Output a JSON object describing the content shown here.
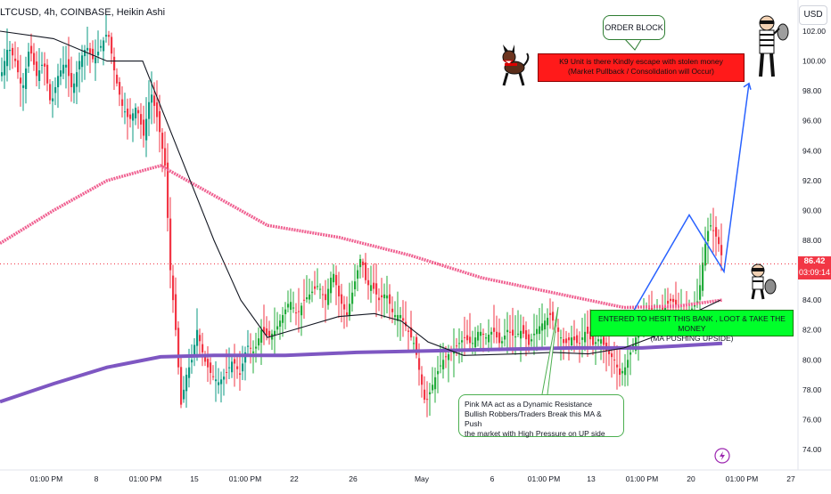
{
  "header": {
    "symbol": "LTCUSD",
    "interval": "4h",
    "exchange": "COINBASE",
    "chart_style": "Heikin Ashi",
    "separator": ", ",
    "currency_button": "USD"
  },
  "price_scale": {
    "last_price": "86.42",
    "countdown": "03:09:14",
    "last_price_color": "#f23645"
  },
  "annotations": {
    "order_block": "ORDER BLOCK",
    "k9_line1": "K9 Unit is there Kindly escape with stolen money",
    "k9_line2": "(Market Pullback / Consolidation will Occur)",
    "enter_line1": "ENTERED TO HESIT THIS BANK , LOOT & TAKE THE MONEY",
    "enter_line2": "(MA PUSHING UPSIDE)",
    "pink_line1": "Pink MA act as a Dynamic Resistance",
    "pink_line2": "Bullish Robbers/Traders Break this MA & Push",
    "pink_line3": "the market with High Pressure on UP side",
    "dog_icon": "guard-dog-icon",
    "robber_icon": "robber-with-money-bag-icon",
    "robber_small_icon": "small-robber-icon",
    "lightning_icon": "lightning-icon"
  },
  "colors": {
    "bull": "#089981",
    "bull_bright": "#22ab3a",
    "bear": "#f23645",
    "pink_ma": "#f06292",
    "purple_ma": "#7e57c2",
    "black_ma": "#131722",
    "projection": "#2962ff"
  },
  "chart_data": {
    "type": "candlestick",
    "title": "",
    "y_range": [
      73,
      103
    ],
    "y_ticks": [
      "74.00",
      "76.00",
      "78.00",
      "80.00",
      "82.00",
      "84.00",
      "86.00",
      "88.00",
      "90.00",
      "92.00",
      "94.00",
      "96.00",
      "98.00",
      "100.00",
      "102.00"
    ],
    "x_ticks": [
      "01:00 PM",
      "8",
      "01:00 PM",
      "15",
      "01:00 PM",
      "22",
      "26",
      "May",
      "6",
      "01:00 PM",
      "13",
      "01:00 PM",
      "20",
      "01:00 PM",
      "27"
    ],
    "last_price": 86.42,
    "close_path": [
      [
        0,
        99
      ],
      [
        8,
        101
      ],
      [
        16,
        100
      ],
      [
        24,
        98
      ],
      [
        32,
        101
      ],
      [
        40,
        99
      ],
      [
        48,
        100
      ],
      [
        56,
        97
      ],
      [
        64,
        99
      ],
      [
        72,
        100
      ],
      [
        80,
        98
      ],
      [
        88,
        100
      ],
      [
        96,
        101
      ],
      [
        104,
        100
      ],
      [
        112,
        101
      ],
      [
        120,
        102
      ],
      [
        128,
        99
      ],
      [
        136,
        97
      ],
      [
        144,
        96
      ],
      [
        152,
        97
      ],
      [
        160,
        95
      ],
      [
        168,
        98
      ],
      [
        176,
        96
      ],
      [
        184,
        93
      ],
      [
        190,
        86
      ],
      [
        196,
        82
      ],
      [
        202,
        77
      ],
      [
        208,
        79
      ],
      [
        214,
        80
      ],
      [
        220,
        82
      ],
      [
        228,
        80
      ],
      [
        236,
        79
      ],
      [
        244,
        78.5
      ],
      [
        252,
        79
      ],
      [
        260,
        80
      ],
      [
        268,
        79
      ],
      [
        276,
        81
      ],
      [
        284,
        80.5
      ],
      [
        292,
        82
      ],
      [
        300,
        81.5
      ],
      [
        308,
        82
      ],
      [
        316,
        83
      ],
      [
        324,
        84
      ],
      [
        332,
        83
      ],
      [
        340,
        84
      ],
      [
        348,
        84.5
      ],
      [
        356,
        85
      ],
      [
        364,
        84
      ],
      [
        372,
        86
      ],
      [
        380,
        84
      ],
      [
        388,
        83
      ],
      [
        396,
        85
      ],
      [
        404,
        87
      ],
      [
        410,
        85
      ],
      [
        416,
        85
      ],
      [
        424,
        84
      ],
      [
        432,
        84.5
      ],
      [
        440,
        83
      ],
      [
        448,
        83
      ],
      [
        456,
        82
      ],
      [
        464,
        81
      ],
      [
        470,
        79
      ],
      [
        476,
        77
      ],
      [
        482,
        78
      ],
      [
        488,
        79
      ],
      [
        496,
        80
      ],
      [
        504,
        80.5
      ],
      [
        512,
        81
      ],
      [
        520,
        81.5
      ],
      [
        528,
        81
      ],
      [
        536,
        82
      ],
      [
        544,
        81.5
      ],
      [
        552,
        82
      ],
      [
        560,
        81
      ],
      [
        568,
        82
      ],
      [
        576,
        81.5
      ],
      [
        584,
        82
      ],
      [
        592,
        81
      ],
      [
        600,
        82
      ],
      [
        608,
        82.5
      ],
      [
        616,
        83
      ],
      [
        624,
        82
      ],
      [
        632,
        81
      ],
      [
        640,
        81.5
      ],
      [
        648,
        81
      ],
      [
        656,
        82
      ],
      [
        664,
        81
      ],
      [
        672,
        81.5
      ],
      [
        680,
        80.5
      ],
      [
        688,
        80
      ],
      [
        694,
        79
      ],
      [
        700,
        79.5
      ],
      [
        706,
        80.5
      ],
      [
        712,
        81.5
      ],
      [
        720,
        83
      ],
      [
        728,
        83.5
      ],
      [
        736,
        83
      ],
      [
        744,
        83.5
      ],
      [
        752,
        84
      ],
      [
        760,
        83.5
      ],
      [
        768,
        83
      ],
      [
        776,
        83.5
      ],
      [
        782,
        84
      ],
      [
        788,
        87
      ],
      [
        792,
        88.5
      ],
      [
        796,
        89
      ],
      [
        800,
        88.5
      ],
      [
        804,
        88
      ],
      [
        808,
        87
      ]
    ],
    "ma_pink": [
      [
        0,
        87.8
      ],
      [
        60,
        90
      ],
      [
        120,
        92
      ],
      [
        180,
        93
      ],
      [
        240,
        91
      ],
      [
        300,
        89
      ],
      [
        380,
        88.2
      ],
      [
        460,
        87
      ],
      [
        540,
        85.5
      ],
      [
        620,
        84.5
      ],
      [
        700,
        83.5
      ],
      [
        760,
        83.6
      ],
      [
        810,
        84
      ]
    ],
    "ma_purple": [
      [
        0,
        77.2
      ],
      [
        60,
        78.4
      ],
      [
        120,
        79.5
      ],
      [
        180,
        80.2
      ],
      [
        240,
        80.3
      ],
      [
        320,
        80.3
      ],
      [
        400,
        80.5
      ],
      [
        480,
        80.6
      ],
      [
        560,
        80.7
      ],
      [
        640,
        80.8
      ],
      [
        720,
        80.8
      ],
      [
        810,
        81.1
      ]
    ],
    "ma_black": [
      [
        0,
        102
      ],
      [
        60,
        101.5
      ],
      [
        120,
        100
      ],
      [
        160,
        100
      ],
      [
        200,
        94
      ],
      [
        240,
        88
      ],
      [
        270,
        84
      ],
      [
        300,
        81.5
      ],
      [
        340,
        82.2
      ],
      [
        380,
        82.9
      ],
      [
        420,
        83.1
      ],
      [
        450,
        82.6
      ],
      [
        480,
        81.2
      ],
      [
        520,
        80.3
      ],
      [
        580,
        80.4
      ],
      [
        620,
        80.5
      ],
      [
        660,
        80.4
      ],
      [
        700,
        80.8
      ],
      [
        740,
        81.7
      ],
      [
        780,
        83.2
      ],
      [
        808,
        84
      ]
    ],
    "projection_path": [
      [
        708,
        83
      ],
      [
        773,
        89.7
      ],
      [
        812,
        85.9
      ],
      [
        840,
        98.5
      ]
    ],
    "legend": []
  }
}
